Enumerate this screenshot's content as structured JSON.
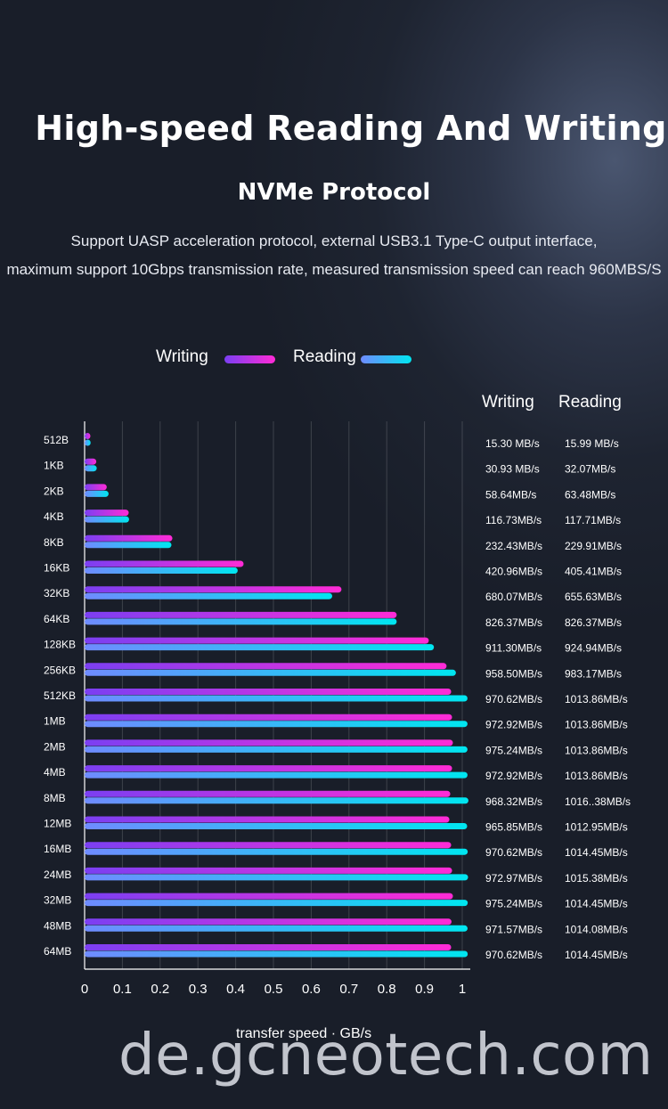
{
  "header": {
    "title": "High-speed Reading And Writing",
    "subtitle": "NVMe Protocol",
    "description_line1": "Support UASP acceleration protocol, external USB3.1 Type-C output interface,",
    "description_line2": "maximum support 10Gbps transmission rate, measured transmission speed can reach 960MBS/S"
  },
  "legend": {
    "writing_label": "Writing",
    "reading_label": "Reading"
  },
  "table_headers": {
    "writing": "Writing",
    "reading": "Reading"
  },
  "colors": {
    "writing_start": "#7b3ff2",
    "writing_end": "#ff2bd6",
    "reading_start": "#6f8bff",
    "reading_end": "#00e6f0"
  },
  "watermark": "de.gcneotech.com",
  "chart_data": {
    "type": "bar",
    "orientation": "horizontal",
    "categories": [
      "512B",
      "1KB",
      "2KB",
      "4KB",
      "8KB",
      "16KB",
      "32KB",
      "64KB",
      "128KB",
      "256KB",
      "512KB",
      "1MB",
      "2MB",
      "4MB",
      "8MB",
      "12MB",
      "16MB",
      "24MB",
      "32MB",
      "48MB",
      "64MB"
    ],
    "series": [
      {
        "name": "Writing",
        "values": [
          0.0153,
          0.0309,
          0.0586,
          0.1167,
          0.2324,
          0.421,
          0.6801,
          0.8264,
          0.9113,
          0.9585,
          0.9706,
          0.9729,
          0.9752,
          0.9729,
          0.9683,
          0.9659,
          0.9706,
          0.973,
          0.9752,
          0.9716,
          0.9706
        ]
      },
      {
        "name": "Reading",
        "values": [
          0.016,
          0.0321,
          0.0635,
          0.1177,
          0.2299,
          0.4054,
          0.6556,
          0.8264,
          0.9249,
          0.9832,
          1.0139,
          1.0139,
          1.0139,
          1.0139,
          1.0164,
          1.013,
          1.0145,
          1.0154,
          1.0145,
          1.0141,
          1.0145
        ]
      }
    ],
    "value_labels": {
      "writing": [
        "15.30 MB/s",
        "30.93 MB/s",
        "58.64MB/s",
        "116.73MB/s",
        "232.43MB/s",
        "420.96MB/s",
        "680.07MB/s",
        "826.37MB/s",
        "911.30MB/s",
        "958.50MB/s",
        "970.62MB/s",
        "972.92MB/s",
        "975.24MB/s",
        "972.92MB/s",
        "968.32MB/s",
        "965.85MB/s",
        "970.62MB/s",
        "972.97MB/s",
        "975.24MB/s",
        "971.57MB/s",
        "970.62MB/s"
      ],
      "reading": [
        "15.99 MB/s",
        "32.07MB/s",
        "63.48MB/s",
        "117.71MB/s",
        "229.91MB/s",
        "405.41MB/s",
        "655.63MB/s",
        "826.37MB/s",
        "924.94MB/s",
        "983.17MB/s",
        "1013.86MB/s",
        "1013.86MB/s",
        "1013.86MB/s",
        "1013.86MB/s",
        "1016..38MB/s",
        "1012.95MB/s",
        "1014.45MB/s",
        "1015.38MB/s",
        "1014.45MB/s",
        "1014.08MB/s",
        "1014.45MB/s"
      ]
    },
    "x_ticks": [
      "0",
      "0.1",
      "0.2",
      "0.3",
      "0.4",
      "0.5",
      "0.6",
      "0.7",
      "0.8",
      "0.9",
      "1"
    ],
    "xlabel": "transfer speed · GB/s",
    "xlim": [
      0,
      1
    ],
    "grid": true,
    "legend_position": "top"
  }
}
